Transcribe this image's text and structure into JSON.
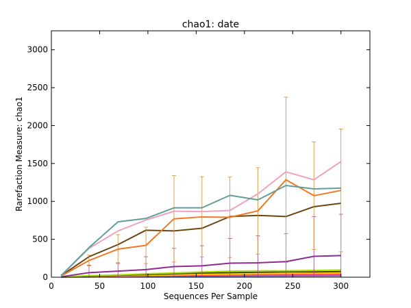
{
  "chart_data": {
    "type": "line",
    "title": "chao1: date",
    "xlabel": "Sequences Per Sample",
    "ylabel": "Rarefaction Measure: chao1",
    "xlim": [
      0,
      330
    ],
    "ylim": [
      0,
      3250
    ],
    "xticks": [
      0,
      50,
      100,
      150,
      200,
      250,
      300
    ],
    "yticks": [
      0,
      500,
      1000,
      1500,
      2000,
      2500,
      3000
    ],
    "grid": false,
    "x": [
      10,
      39,
      69,
      98,
      127,
      156,
      185,
      214,
      243,
      272,
      300
    ],
    "series": [
      {
        "color": "#5f9e9a",
        "values": [
          20,
          390,
          730,
          775,
          915,
          915,
          1080,
          1020,
          1210,
          1165,
          1175
        ],
        "error": null
      },
      {
        "color": "#f0a0c0",
        "values": [
          20,
          380,
          610,
          755,
          870,
          865,
          880,
          1100,
          1390,
          1285,
          1525
        ],
        "error": null
      },
      {
        "color": "#f07820",
        "values": [
          15,
          220,
          370,
          420,
          770,
          795,
          790,
          875,
          1285,
          1075,
          1145
        ],
        "error": [
          0,
          70,
          190,
          240,
          570,
          530,
          530,
          570,
          1090,
          710,
          810
        ],
        "error_color": "#d9892f"
      },
      {
        "color": "#6b4510",
        "values": [
          20,
          270,
          430,
          620,
          610,
          645,
          800,
          815,
          800,
          930,
          975
        ],
        "error": null
      },
      {
        "color": "#8e2a8e",
        "values": [
          5,
          60,
          80,
          100,
          140,
          150,
          185,
          190,
          205,
          275,
          285
        ],
        "error": [
          0,
          100,
          110,
          170,
          240,
          265,
          325,
          355,
          370,
          525,
          545
        ],
        "error_color": "#a040a0"
      },
      {
        "color": "#aadd00",
        "values": [
          5,
          20,
          30,
          45,
          55,
          70,
          80,
          85,
          85,
          90,
          95
        ],
        "error": null
      },
      {
        "color": "#444400",
        "values": [
          5,
          15,
          25,
          35,
          45,
          55,
          60,
          65,
          70,
          70,
          75
        ],
        "error": null
      },
      {
        "color": "#ffd000",
        "values": [
          5,
          12,
          18,
          25,
          32,
          38,
          42,
          48,
          52,
          55,
          58
        ],
        "error": null
      },
      {
        "color": "#ff5050",
        "values": [
          5,
          10,
          14,
          18,
          22,
          26,
          30,
          34,
          36,
          38,
          40
        ],
        "error": null
      },
      {
        "color": "#c060c0",
        "values": [
          3,
          8,
          12,
          15,
          18,
          20,
          22,
          24,
          26,
          27,
          28
        ],
        "error": null
      },
      {
        "color": "#3060d0",
        "values": [
          2,
          5,
          8,
          10,
          12,
          14,
          15,
          16,
          17,
          18,
          19
        ],
        "error": null
      }
    ]
  }
}
